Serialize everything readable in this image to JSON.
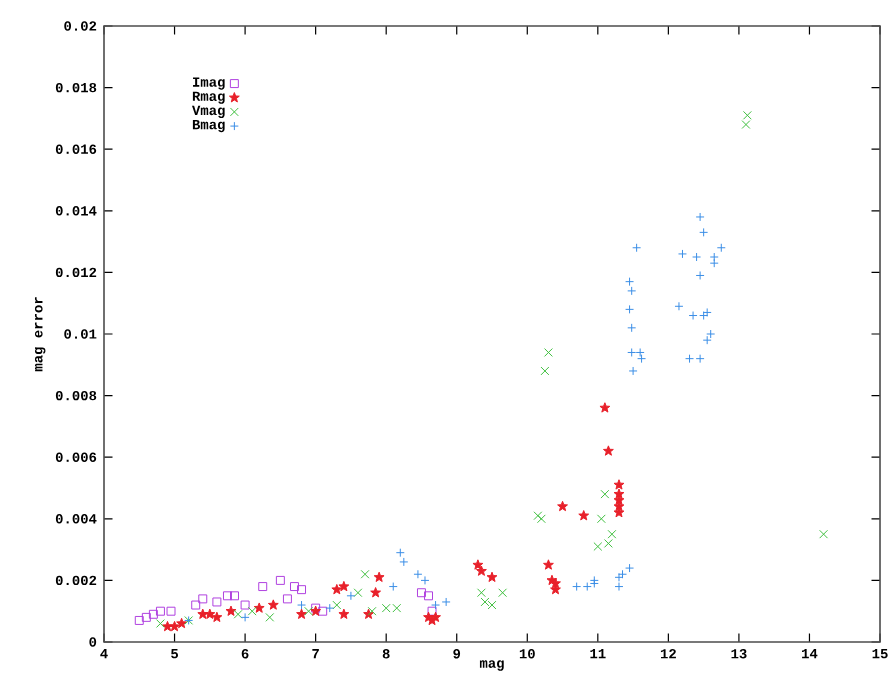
{
  "chart_data": {
    "type": "scatter",
    "xlabel": "mag",
    "ylabel": "mag error",
    "xlim": [
      4,
      15
    ],
    "ylim": [
      0,
      0.02
    ],
    "xticks": [
      4,
      5,
      6,
      7,
      8,
      9,
      10,
      11,
      12,
      13,
      14,
      15
    ],
    "yticks": [
      0,
      0.002,
      0.004,
      0.006,
      0.008,
      0.01,
      0.012,
      0.014,
      0.016,
      0.018,
      0.02
    ],
    "grid": false,
    "legend": "top left",
    "series": [
      {
        "name": "Imag",
        "color": "#b040e0",
        "marker": "square",
        "x": [
          4.5,
          4.6,
          4.7,
          4.8,
          4.95,
          5.3,
          5.4,
          5.6,
          5.75,
          5.85,
          6.0,
          6.25,
          6.5,
          6.6,
          6.7,
          6.8,
          7.0,
          7.1,
          8.5,
          8.6,
          8.65
        ],
        "values": [
          0.0007,
          0.0008,
          0.0009,
          0.001,
          0.001,
          0.0012,
          0.0014,
          0.0013,
          0.0015,
          0.0015,
          0.0012,
          0.0018,
          0.002,
          0.0014,
          0.0018,
          0.0017,
          0.0011,
          0.001,
          0.0016,
          0.0015,
          0.001
        ]
      },
      {
        "name": "Rmag",
        "color": "#e8202a",
        "marker": "star",
        "x": [
          4.9,
          5.0,
          5.1,
          5.4,
          5.5,
          5.6,
          5.8,
          6.2,
          6.4,
          6.8,
          7.0,
          7.3,
          7.4,
          7.4,
          7.75,
          7.9,
          7.85,
          8.6,
          8.65,
          8.7,
          9.3,
          9.35,
          9.5,
          10.3,
          10.35,
          10.4,
          10.4,
          10.5,
          10.8,
          11.1,
          11.15,
          11.3,
          11.3,
          11.3,
          11.3,
          11.3
        ],
        "values": [
          0.0005,
          0.0005,
          0.0006,
          0.0009,
          0.0009,
          0.0008,
          0.001,
          0.0011,
          0.0012,
          0.0009,
          0.001,
          0.0017,
          0.0018,
          0.0009,
          0.0009,
          0.0021,
          0.0016,
          0.0008,
          0.0007,
          0.0008,
          0.0025,
          0.0023,
          0.0021,
          0.0025,
          0.002,
          0.0017,
          0.0019,
          0.0044,
          0.0041,
          0.0076,
          0.0062,
          0.0051,
          0.0048,
          0.0046,
          0.0044,
          0.0042
        ]
      },
      {
        "name": "Vmag",
        "color": "#40c040",
        "marker": "cross",
        "x": [
          4.8,
          5.2,
          5.9,
          6.1,
          6.35,
          6.9,
          7.3,
          7.6,
          7.7,
          7.8,
          8.0,
          8.15,
          9.35,
          9.4,
          9.5,
          9.65,
          10.15,
          10.2,
          10.25,
          10.3,
          11.0,
          11.05,
          11.1,
          11.15,
          11.2,
          13.1,
          13.12,
          14.2
        ],
        "values": [
          0.0006,
          0.0007,
          0.0009,
          0.001,
          0.0008,
          0.001,
          0.0012,
          0.0016,
          0.0022,
          0.001,
          0.0011,
          0.0011,
          0.0016,
          0.0013,
          0.0012,
          0.0016,
          0.0041,
          0.004,
          0.0088,
          0.0094,
          0.0031,
          0.004,
          0.0048,
          0.0032,
          0.0035,
          0.0168,
          0.0171,
          0.0035
        ]
      },
      {
        "name": "Bmag",
        "color": "#3a8ee6",
        "marker": "plus",
        "x": [
          5.2,
          6.0,
          6.8,
          7.2,
          7.5,
          8.2,
          8.25,
          8.1,
          8.45,
          8.55,
          8.7,
          8.85,
          10.7,
          10.85,
          10.95,
          10.95,
          11.3,
          11.3,
          11.35,
          11.45,
          11.45,
          11.48,
          11.45,
          11.48,
          11.48,
          11.5,
          11.55,
          11.6,
          11.62,
          12.15,
          12.2,
          12.3,
          12.35,
          12.4,
          12.45,
          12.45,
          12.45,
          12.5,
          12.5,
          12.55,
          12.55,
          12.6,
          12.65,
          12.65,
          12.75
        ],
        "values": [
          0.0007,
          0.0008,
          0.0012,
          0.0011,
          0.0015,
          0.0029,
          0.0026,
          0.0018,
          0.0022,
          0.002,
          0.0012,
          0.0013,
          0.0018,
          0.0018,
          0.0019,
          0.002,
          0.0018,
          0.0021,
          0.0022,
          0.0024,
          0.0117,
          0.0114,
          0.0108,
          0.0102,
          0.0094,
          0.0088,
          0.0128,
          0.0094,
          0.0092,
          0.0109,
          0.0126,
          0.0092,
          0.0106,
          0.0125,
          0.0119,
          0.0138,
          0.0092,
          0.0133,
          0.0106,
          0.0107,
          0.0098,
          0.01,
          0.0123,
          0.0125,
          0.0128
        ]
      }
    ]
  }
}
